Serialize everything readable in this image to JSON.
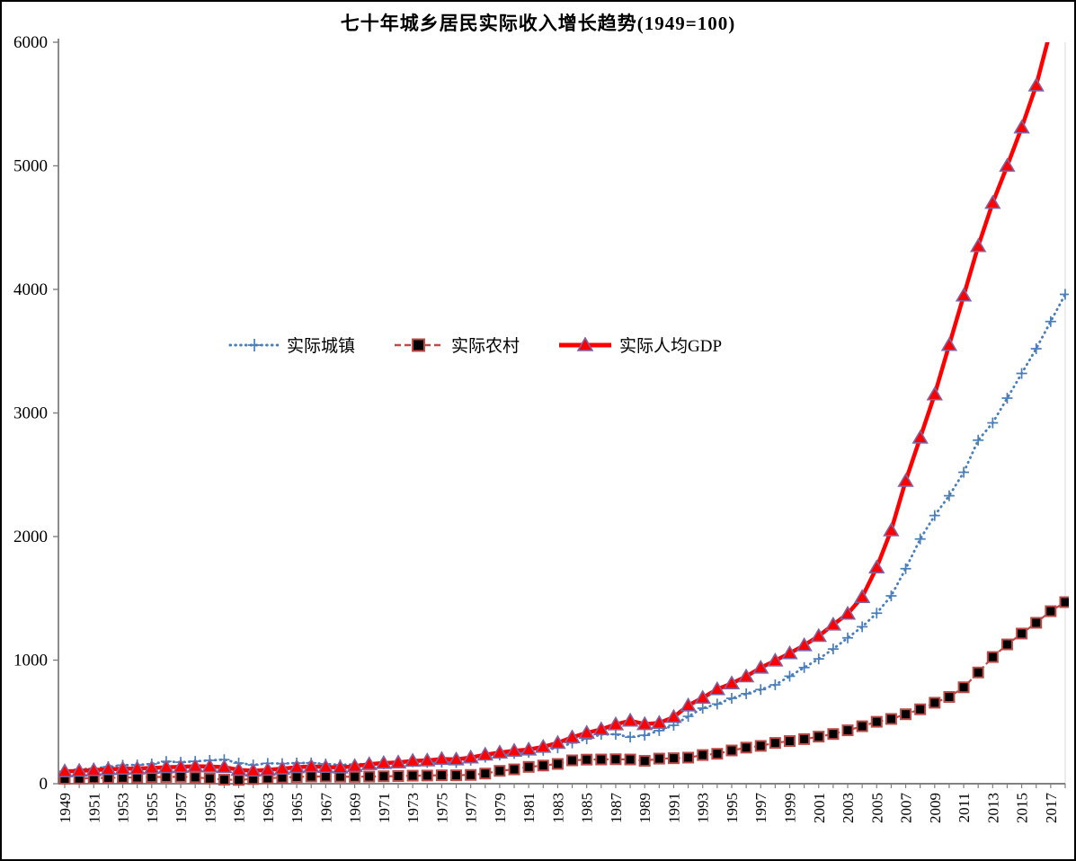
{
  "title": "七十年城乡居民实际收入增长趋势(1949=100)",
  "colors": {
    "urban_blue": "#4a7ebb",
    "rural_darkred": "#be4b48",
    "rural_marker_fill": "#000000",
    "gdp_red": "#fe0000",
    "gdp_marker_border": "#8064a2",
    "axis": "#595959",
    "tick": "#808080",
    "plot_right_border": "#d9d9d9"
  },
  "chart_data": {
    "type": "line",
    "title": "七十年城乡居民实际收入增长趋势(1949=100)",
    "xlabel": "",
    "ylabel": "",
    "ylim": [
      0,
      6000
    ],
    "y_ticks": [
      0,
      1000,
      2000,
      3000,
      4000,
      5000,
      6000
    ],
    "x_tick_label_step": 2,
    "x_first_label": 1949,
    "x_last_label": 2017,
    "grid": false,
    "legend_position": "inside-center-left",
    "x": [
      1949,
      1950,
      1951,
      1952,
      1953,
      1954,
      1955,
      1956,
      1957,
      1958,
      1959,
      1960,
      1961,
      1962,
      1963,
      1964,
      1965,
      1966,
      1967,
      1968,
      1969,
      1970,
      1971,
      1972,
      1973,
      1974,
      1975,
      1976,
      1977,
      1978,
      1979,
      1980,
      1981,
      1982,
      1983,
      1984,
      1985,
      1986,
      1987,
      1988,
      1989,
      1990,
      1991,
      1992,
      1993,
      1994,
      1995,
      1996,
      1997,
      1998,
      1999,
      2000,
      2001,
      2002,
      2003,
      2004,
      2005,
      2006,
      2007,
      2008,
      2009,
      2010,
      2011,
      2012,
      2013,
      2014,
      2015,
      2016,
      2017,
      2018
    ],
    "series": [
      {
        "name": "实际城镇",
        "color": "#4a7ebb",
        "line_style": "dotted",
        "marker": "plus",
        "values": [
          100,
          116,
          123,
          138,
          150,
          152,
          160,
          180,
          174,
          181,
          189,
          195,
          167,
          152,
          165,
          163,
          167,
          168,
          160,
          153,
          156,
          160,
          161,
          172,
          177,
          172,
          175,
          171,
          190,
          215,
          232,
          245,
          254,
          270,
          290,
          330,
          363,
          399,
          400,
          377,
          392,
          430,
          473,
          545,
          611,
          645,
          691,
          728,
          762,
          800,
          870,
          940,
          1010,
          1090,
          1180,
          1270,
          1380,
          1520,
          1740,
          1980,
          2170,
          2330,
          2520,
          2780,
          2920,
          3120,
          3320,
          3520,
          3740,
          3960
        ]
      },
      {
        "name": "实际农村",
        "color": "#be4b48",
        "marker_fill": "#000000",
        "line_style": "dashed",
        "marker": "square",
        "values": [
          40,
          42,
          45,
          48,
          49,
          51,
          53,
          55,
          56,
          52,
          42,
          33,
          31,
          38,
          44,
          50,
          55,
          58,
          58,
          57,
          56,
          58,
          60,
          62,
          65,
          66,
          68,
          68,
          71,
          82,
          104,
          116,
          136,
          147,
          160,
          189,
          195,
          196,
          198,
          196,
          185,
          203,
          206,
          211,
          232,
          242,
          269,
          292,
          306,
          330,
          345,
          361,
          381,
          402,
          432,
          465,
          501,
          524,
          562,
          602,
          655,
          702,
          780,
          900,
          1025,
          1127,
          1215,
          1302,
          1396,
          1469
        ]
      },
      {
        "name": "实际人均GDP",
        "color": "#fe0000",
        "marker_stroke": "#8064a2",
        "line_style": "solid",
        "marker": "triangle",
        "values": [
          100,
          104,
          109,
          117,
          121,
          123,
          127,
          133,
          136,
          141,
          139,
          134,
          112,
          105,
          112,
          122,
          133,
          140,
          135,
          131,
          142,
          158,
          167,
          172,
          185,
          188,
          200,
          196,
          212,
          235,
          252,
          266,
          276,
          298,
          330,
          375,
          412,
          440,
          480,
          510,
          482,
          492,
          540,
          633,
          695,
          764,
          812,
          868,
          938,
          996,
          1055,
          1120,
          1195,
          1287,
          1375,
          1510,
          1750,
          2050,
          2450,
          2800,
          3150,
          3550,
          3950,
          4350,
          4700,
          5000,
          5310,
          5650,
          6100,
          6600
        ]
      }
    ]
  }
}
